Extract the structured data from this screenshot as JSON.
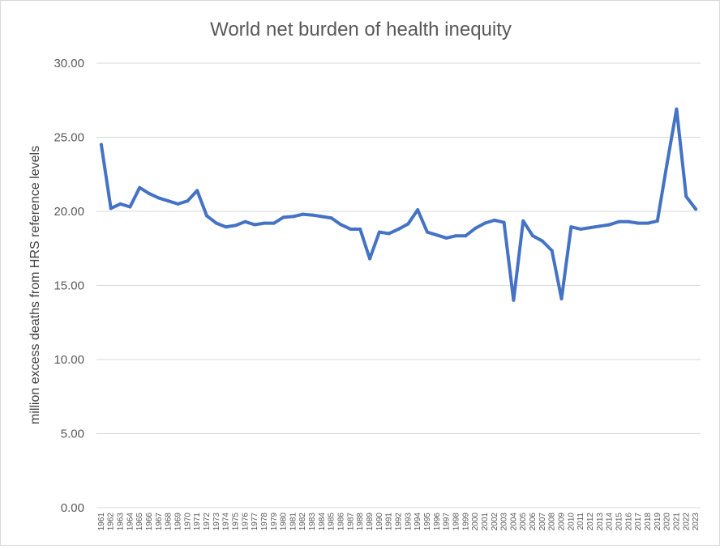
{
  "chart_data": {
    "type": "line",
    "title": "World net burden of health inequity",
    "ylabel": "million excess deaths from HRS reference levels",
    "xlabel": "",
    "ylim": [
      0,
      30
    ],
    "yticks": [
      "0.00",
      "5.00",
      "10.00",
      "15.00",
      "20.00",
      "25.00",
      "30.00"
    ],
    "grid": true,
    "legend": "none",
    "colors": {
      "series": "#4472c4",
      "grid": "#d9d9d9",
      "text": "#595959"
    },
    "x": [
      "1961",
      "1962",
      "1963",
      "1964",
      "1965",
      "1966",
      "1967",
      "1968",
      "1969",
      "1970",
      "1971",
      "1972",
      "1973",
      "1974",
      "1975",
      "1976",
      "1977",
      "1978",
      "1979",
      "1980",
      "1981",
      "1982",
      "1983",
      "1984",
      "1985",
      "1986",
      "1987",
      "1988",
      "1989",
      "1990",
      "1991",
      "1992",
      "1993",
      "1994",
      "1995",
      "1996",
      "1997",
      "1998",
      "1999",
      "2000",
      "2001",
      "2002",
      "2003",
      "2004",
      "2005",
      "2006",
      "2007",
      "2008",
      "2009",
      "2010",
      "2011",
      "2012",
      "2013",
      "2014",
      "2015",
      "2016",
      "2017",
      "2018",
      "2019",
      "2020",
      "2021",
      "2022",
      "2023"
    ],
    "series": [
      {
        "values": [
          24.5,
          20.2,
          20.5,
          20.3,
          21.6,
          21.2,
          20.9,
          20.7,
          20.5,
          20.7,
          21.4,
          19.7,
          19.2,
          18.95,
          19.05,
          19.3,
          19.1,
          19.2,
          19.2,
          19.6,
          19.65,
          19.8,
          19.75,
          19.65,
          19.55,
          19.1,
          18.8,
          18.8,
          16.8,
          18.6,
          18.5,
          18.8,
          19.15,
          20.1,
          18.6,
          18.4,
          18.2,
          18.35,
          18.35,
          18.85,
          19.2,
          19.4,
          19.25,
          14.0,
          19.35,
          18.35,
          18.0,
          17.35,
          14.1,
          18.95,
          18.8,
          18.9,
          19.0,
          19.1,
          19.3,
          19.3,
          19.2,
          19.2,
          19.35,
          23.2,
          26.9,
          21.0,
          20.15
        ]
      }
    ]
  }
}
